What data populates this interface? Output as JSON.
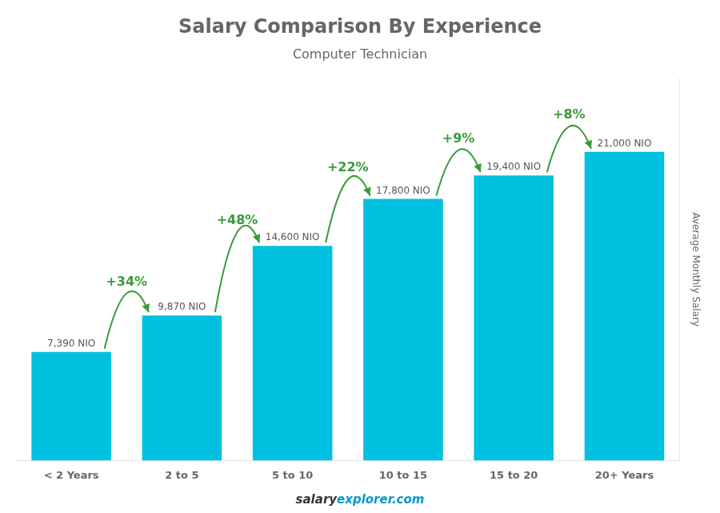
{
  "chart_data": {
    "type": "bar",
    "title": "Salary Comparison By Experience",
    "subtitle": "Computer Technician",
    "categories": [
      "< 2 Years",
      "2 to 5",
      "5 to 10",
      "10 to 15",
      "15 to 20",
      "20+ Years"
    ],
    "values": [
      7390,
      9870,
      14600,
      17800,
      19400,
      21000
    ],
    "value_labels": [
      "7,390 NIO",
      "9,870 NIO",
      "14,600 NIO",
      "17,800 NIO",
      "19,400 NIO",
      "21,000 NIO"
    ],
    "data_labels": true,
    "annotations": [
      "+34%",
      "+48%",
      "+22%",
      "+9%",
      "+8%"
    ],
    "color": "#00c0e0",
    "ylabel": "Average Monthly Salary",
    "watermark": [
      "salary",
      "explorer.com"
    ],
    "ylim": [
      0,
      26000
    ],
    "tick_labels": "x",
    "grid": false
  }
}
